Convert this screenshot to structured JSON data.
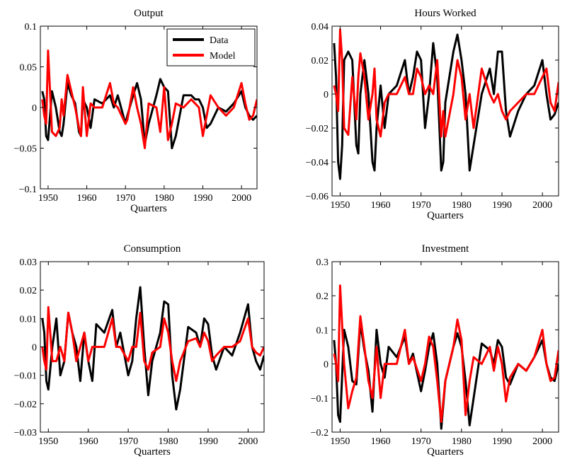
{
  "colors": {
    "data": "#000000",
    "model": "#ff0000",
    "axis": "#000000",
    "background": "#ffffff"
  },
  "legend": {
    "panel": "Output",
    "placement": "top-right",
    "entries": [
      "Data",
      "Model"
    ]
  },
  "chart_data": [
    {
      "type": "line",
      "title": "Output",
      "xlabel": "Quarters",
      "ylabel": "",
      "xlim": [
        1948,
        2004
      ],
      "ylim": [
        -0.1,
        0.1
      ],
      "xticks": [
        1950,
        1960,
        1970,
        1980,
        1990,
        2000
      ],
      "yticks": [
        -0.1,
        -0.05,
        0,
        0.05,
        0.1
      ],
      "ytick_labels": [
        "−0.1",
        "−0.05",
        "0",
        "0.05",
        "0.1"
      ],
      "grid": false,
      "series": [
        {
          "name": "Data",
          "color": "#000000",
          "x": [
            1948.5,
            1949,
            1949.5,
            1950,
            1950.5,
            1951,
            1952,
            1953,
            1953.5,
            1954,
            1955,
            1956,
            1957,
            1958,
            1958.5,
            1959,
            1960,
            1961,
            1962,
            1964,
            1966,
            1967,
            1968,
            1970,
            1970.5,
            1972,
            1973,
            1974,
            1975,
            1976,
            1978,
            1979,
            1980,
            1981,
            1982,
            1983,
            1985,
            1987,
            1988,
            1989,
            1990,
            1991,
            1992,
            1994,
            1996,
            1998,
            2000,
            2001,
            2002,
            2003,
            2004
          ],
          "y": [
            0.02,
            0.01,
            -0.035,
            -0.04,
            -0.01,
            0.02,
            0.0,
            -0.03,
            -0.035,
            -0.02,
            0.03,
            0.015,
            0.005,
            -0.03,
            -0.035,
            0.01,
            0.0,
            -0.025,
            0.01,
            0.005,
            0.015,
            0.0,
            0.015,
            -0.02,
            -0.01,
            0.015,
            0.03,
            0.01,
            -0.045,
            -0.02,
            0.015,
            0.035,
            0.025,
            0.02,
            -0.05,
            -0.035,
            0.015,
            0.015,
            0.01,
            0.01,
            0.0,
            -0.025,
            -0.02,
            0.0,
            -0.005,
            0.005,
            0.02,
            0.0,
            -0.01,
            -0.015,
            -0.01
          ]
        },
        {
          "name": "Model",
          "color": "#ff0000",
          "x": [
            1948.5,
            1949,
            1949.5,
            1950,
            1950.5,
            1951,
            1952,
            1953,
            1953.5,
            1954,
            1955,
            1956,
            1957,
            1958,
            1958.5,
            1959,
            1960,
            1961,
            1962,
            1964,
            1966,
            1967,
            1968,
            1970,
            1970.5,
            1972,
            1973,
            1974,
            1975,
            1976,
            1978,
            1979,
            1980,
            1981,
            1982,
            1983,
            1985,
            1987,
            1988,
            1989,
            1990,
            1991,
            1992,
            1994,
            1996,
            1998,
            2000,
            2001,
            2002,
            2003,
            2004
          ],
          "y": [
            0.01,
            -0.01,
            -0.02,
            0.07,
            0.02,
            -0.03,
            -0.035,
            -0.025,
            0.01,
            -0.01,
            0.04,
            0.02,
            0.0,
            -0.025,
            -0.035,
            0.025,
            -0.035,
            0.005,
            0.0,
            0.0,
            0.03,
            0.005,
            0.0,
            -0.02,
            -0.015,
            0.025,
            0.0,
            -0.02,
            -0.05,
            0.005,
            0.0,
            -0.03,
            0.025,
            -0.04,
            -0.02,
            0.005,
            0.0,
            0.01,
            0.005,
            0.0,
            -0.035,
            -0.01,
            0.015,
            0.0,
            -0.01,
            0.0,
            0.03,
            0.005,
            -0.015,
            -0.01,
            0.01
          ]
        }
      ]
    },
    {
      "type": "line",
      "title": "Hours Worked",
      "xlabel": "Quarters",
      "ylabel": "",
      "xlim": [
        1948,
        2004
      ],
      "ylim": [
        -0.06,
        0.04
      ],
      "xticks": [
        1950,
        1960,
        1970,
        1980,
        1990,
        2000
      ],
      "yticks": [
        -0.06,
        -0.04,
        -0.02,
        0,
        0.02,
        0.04
      ],
      "ytick_labels": [
        "−0.06",
        "−0.04",
        "−0.02",
        "0",
        "0.02",
        "0.04"
      ],
      "grid": false,
      "series": [
        {
          "name": "Data",
          "color": "#000000",
          "x": [
            1948.5,
            1949,
            1949.5,
            1950,
            1950.5,
            1951,
            1952,
            1953,
            1954,
            1954.5,
            1955,
            1956,
            1957,
            1958,
            1958.5,
            1959,
            1960,
            1961,
            1962,
            1964,
            1966,
            1967,
            1968,
            1969,
            1970,
            1971,
            1972,
            1973,
            1974,
            1975,
            1975.5,
            1976,
            1978,
            1979,
            1980,
            1981,
            1982,
            1983,
            1985,
            1987,
            1988,
            1989,
            1990,
            1991,
            1992,
            1994,
            1996,
            1998,
            2000,
            2001,
            2002,
            2003,
            2004
          ],
          "y": [
            0.03,
            0.01,
            -0.04,
            -0.05,
            -0.03,
            0.02,
            0.025,
            0.02,
            -0.03,
            -0.035,
            0.0,
            0.02,
            0.0,
            -0.04,
            -0.045,
            -0.02,
            0.005,
            -0.02,
            0.0,
            0.005,
            0.02,
            0.0,
            0.01,
            0.025,
            0.02,
            -0.02,
            0.0,
            0.03,
            0.01,
            -0.045,
            -0.04,
            -0.005,
            0.025,
            0.035,
            0.02,
            0.0,
            -0.045,
            -0.03,
            0.0,
            0.015,
            0.0,
            0.025,
            0.025,
            -0.01,
            -0.025,
            -0.01,
            0.0,
            0.005,
            0.02,
            0.0,
            -0.015,
            -0.012,
            -0.005
          ]
        },
        {
          "name": "Model",
          "color": "#ff0000",
          "x": [
            1948.5,
            1949,
            1949.5,
            1950,
            1950.5,
            1951,
            1952,
            1953,
            1954,
            1954.5,
            1955,
            1956,
            1957,
            1958,
            1958.5,
            1959,
            1960,
            1961,
            1962,
            1964,
            1966,
            1967,
            1968,
            1969,
            1970,
            1971,
            1972,
            1973,
            1974,
            1975,
            1975.5,
            1976,
            1978,
            1979,
            1980,
            1981,
            1982,
            1983,
            1985,
            1987,
            1988,
            1989,
            1990,
            1991,
            1992,
            1994,
            1996,
            1998,
            2000,
            2001,
            2002,
            2003,
            2004
          ],
          "y": [
            0.005,
            0.0,
            -0.01,
            0.038,
            0.02,
            -0.02,
            -0.024,
            0.01,
            -0.015,
            0.01,
            0.024,
            0.01,
            -0.015,
            0.0,
            0.015,
            -0.015,
            -0.025,
            -0.005,
            0.0,
            0.0,
            0.01,
            0.0,
            0.0,
            0.015,
            0.01,
            0.0,
            0.005,
            0.0,
            0.02,
            -0.025,
            -0.01,
            -0.025,
            0.0,
            0.02,
            0.01,
            -0.015,
            0.0,
            -0.02,
            0.015,
            0.0,
            -0.005,
            0.0,
            -0.01,
            -0.015,
            -0.01,
            -0.005,
            0.0,
            0.0,
            0.01,
            0.015,
            -0.005,
            -0.01,
            0.007
          ]
        }
      ]
    },
    {
      "type": "line",
      "title": "Consumption",
      "xlabel": "Quarters",
      "ylabel": "",
      "xlim": [
        1948,
        2004
      ],
      "ylim": [
        -0.03,
        0.03
      ],
      "xticks": [
        1950,
        1960,
        1970,
        1980,
        1990,
        2000
      ],
      "yticks": [
        -0.03,
        -0.02,
        -0.01,
        0,
        0.01,
        0.02,
        0.03
      ],
      "ytick_labels": [
        "−0.03",
        "−0.02",
        "−0.01",
        "0",
        "0.01",
        "0.02",
        "0.03"
      ],
      "grid": false,
      "series": [
        {
          "name": "Data",
          "color": "#000000",
          "x": [
            1948.5,
            1949,
            1949.5,
            1950,
            1951,
            1952,
            1953,
            1954,
            1955,
            1956,
            1957,
            1958,
            1959,
            1960,
            1961,
            1962,
            1964,
            1966,
            1967,
            1968,
            1970,
            1971,
            1972,
            1973,
            1974,
            1975,
            1976,
            1978,
            1979,
            1980,
            1981,
            1982,
            1983,
            1985,
            1987,
            1988,
            1989,
            1990,
            1991,
            1992,
            1994,
            1996,
            1998,
            2000,
            2001,
            2002,
            2003,
            2004
          ],
          "y": [
            0.01,
            0.005,
            -0.012,
            -0.015,
            0.0,
            0.01,
            -0.01,
            -0.005,
            0.012,
            0.005,
            0.0,
            -0.012,
            0.005,
            -0.005,
            -0.012,
            0.008,
            0.005,
            0.013,
            0.0,
            0.005,
            -0.01,
            -0.005,
            0.01,
            0.021,
            0.0,
            -0.017,
            -0.005,
            0.005,
            0.016,
            0.015,
            -0.01,
            -0.022,
            -0.015,
            0.007,
            0.005,
            0.0,
            0.01,
            0.008,
            -0.003,
            -0.008,
            0.0,
            -0.003,
            0.005,
            0.015,
            0.0,
            -0.005,
            -0.008,
            -0.003
          ]
        },
        {
          "name": "Model",
          "color": "#ff0000",
          "x": [
            1948.5,
            1949,
            1949.5,
            1950,
            1951,
            1952,
            1953,
            1954,
            1955,
            1956,
            1957,
            1958,
            1959,
            1960,
            1961,
            1962,
            1964,
            1966,
            1967,
            1968,
            1970,
            1971,
            1972,
            1973,
            1974,
            1975,
            1976,
            1978,
            1979,
            1980,
            1981,
            1982,
            1983,
            1985,
            1987,
            1988,
            1989,
            1990,
            1991,
            1992,
            1994,
            1996,
            1998,
            2000,
            2001,
            2002,
            2003,
            2004
          ],
          "y": [
            0.0,
            -0.005,
            -0.008,
            0.014,
            -0.005,
            -0.005,
            0.0,
            -0.005,
            0.012,
            0.005,
            -0.005,
            0.0,
            0.005,
            -0.005,
            0.0,
            0.0,
            0.0,
            0.01,
            0.0,
            0.0,
            -0.005,
            0.0,
            0.0,
            0.012,
            -0.005,
            -0.008,
            -0.002,
            0.0,
            0.01,
            0.005,
            -0.005,
            -0.012,
            -0.005,
            0.002,
            0.003,
            0.0,
            0.005,
            0.002,
            -0.005,
            -0.003,
            0.0,
            0.0,
            0.002,
            0.01,
            0.0,
            -0.002,
            -0.003,
            0.0
          ]
        }
      ]
    },
    {
      "type": "line",
      "title": "Investment",
      "xlabel": "Quarters",
      "ylabel": "",
      "xlim": [
        1948,
        2004
      ],
      "ylim": [
        -0.2,
        0.3
      ],
      "xticks": [
        1950,
        1960,
        1970,
        1980,
        1990,
        2000
      ],
      "yticks": [
        -0.2,
        -0.1,
        0,
        0.1,
        0.2,
        0.3
      ],
      "ytick_labels": [
        "−0.2",
        "−0.1",
        "0",
        "0.1",
        "0.2",
        "0.3"
      ],
      "grid": false,
      "series": [
        {
          "name": "Data",
          "color": "#000000",
          "x": [
            1948.5,
            1949,
            1949.5,
            1950,
            1951,
            1952,
            1953,
            1954,
            1955,
            1956,
            1957,
            1958,
            1959,
            1960,
            1961,
            1962,
            1964,
            1966,
            1967,
            1968,
            1970,
            1971,
            1972,
            1973,
            1974,
            1975,
            1976,
            1978,
            1979,
            1980,
            1981,
            1982,
            1983,
            1985,
            1987,
            1988,
            1989,
            1990,
            1991,
            1992,
            1994,
            1996,
            1998,
            2000,
            2001,
            2002,
            2003,
            2004
          ],
          "y": [
            0.07,
            0.0,
            -0.15,
            -0.17,
            0.1,
            0.05,
            -0.05,
            -0.06,
            0.12,
            0.04,
            -0.02,
            -0.14,
            0.1,
            0.0,
            -0.04,
            0.05,
            0.02,
            0.08,
            0.0,
            0.03,
            -0.08,
            -0.02,
            0.05,
            0.09,
            0.0,
            -0.19,
            -0.05,
            0.05,
            0.09,
            0.05,
            -0.05,
            -0.18,
            -0.1,
            0.06,
            0.04,
            0.0,
            0.07,
            0.05,
            -0.04,
            -0.06,
            0.0,
            -0.02,
            0.02,
            0.07,
            0.0,
            -0.04,
            -0.05,
            0.0
          ]
        },
        {
          "name": "Model",
          "color": "#ff0000",
          "x": [
            1948.5,
            1949,
            1949.5,
            1950,
            1951,
            1952,
            1953,
            1954,
            1955,
            1956,
            1957,
            1958,
            1959,
            1960,
            1961,
            1962,
            1964,
            1966,
            1967,
            1968,
            1970,
            1971,
            1972,
            1973,
            1974,
            1975,
            1976,
            1978,
            1979,
            1980,
            1981,
            1982,
            1983,
            1985,
            1987,
            1988,
            1989,
            1990,
            1991,
            1992,
            1994,
            1996,
            1998,
            2000,
            2001,
            2002,
            2003,
            2004
          ],
          "y": [
            0.03,
            0.0,
            -0.05,
            0.23,
            0.0,
            -0.13,
            -0.08,
            -0.04,
            0.14,
            0.05,
            -0.05,
            -0.1,
            0.05,
            -0.1,
            0.0,
            0.0,
            0.0,
            0.1,
            0.0,
            0.02,
            -0.05,
            0.0,
            0.08,
            0.05,
            -0.05,
            -0.17,
            -0.05,
            0.05,
            0.13,
            0.07,
            -0.15,
            -0.05,
            0.02,
            0.0,
            0.05,
            -0.02,
            0.05,
            0.0,
            -0.11,
            -0.04,
            0.0,
            -0.02,
            0.02,
            0.1,
            0.0,
            -0.05,
            -0.04,
            0.04
          ]
        }
      ]
    }
  ]
}
